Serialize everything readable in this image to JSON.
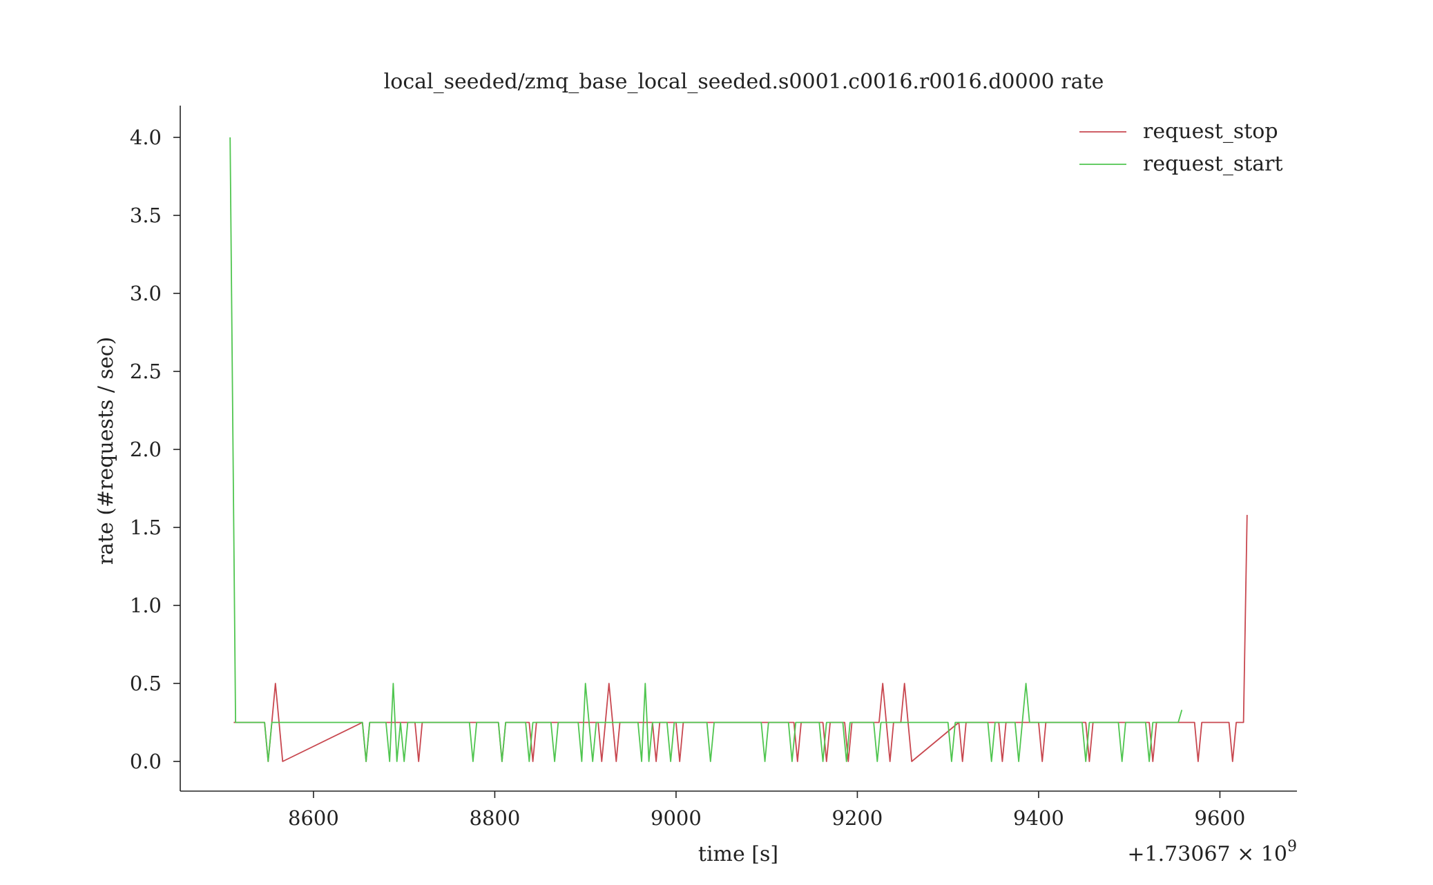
{
  "chart_data": {
    "type": "line",
    "title": "local_seeded/zmq_base_local_seeded.s0001.c0016.r0016.d0000 rate",
    "xlabel": "time [s]",
    "ylabel": "rate (#requests / sec)",
    "x_offset_label": "+1.73067 × 10",
    "x_offset_exponent": "9",
    "xlim": [
      8453,
      9685
    ],
    "ylim": [
      -0.2,
      4.2
    ],
    "x_ticks": [
      8600,
      8800,
      9000,
      9200,
      9400,
      9600
    ],
    "x_tick_labels": [
      "8600",
      "8800",
      "9000",
      "9200",
      "9400",
      "9600"
    ],
    "y_ticks": [
      0.0,
      0.5,
      1.0,
      1.5,
      2.0,
      2.5,
      3.0,
      3.5,
      4.0
    ],
    "y_tick_labels": [
      "0.0",
      "0.5",
      "1.0",
      "1.5",
      "2.0",
      "2.5",
      "3.0",
      "3.5",
      "4.0"
    ],
    "grid": false,
    "legend_position": "top-right",
    "series": [
      {
        "name": "request_stop",
        "color": "#c8474f",
        "x": [
          8512,
          8546,
          8550,
          8554,
          8558,
          8562,
          8566,
          8654,
          8658,
          8662,
          8704,
          8708,
          8712,
          8716,
          8720,
          8804,
          8808,
          8812,
          8838,
          8842,
          8846,
          8914,
          8918,
          8922,
          8926,
          8930,
          8934,
          8938,
          8974,
          8978,
          8982,
          9000,
          9004,
          9008,
          9130,
          9134,
          9138,
          9162,
          9166,
          9170,
          9186,
          9190,
          9194,
          9224,
          9228,
          9232,
          9236,
          9240,
          9248,
          9252,
          9256,
          9260,
          9312,
          9316,
          9320,
          9356,
          9360,
          9364,
          9400,
          9404,
          9408,
          9452,
          9456,
          9460,
          9522,
          9526,
          9530,
          9568,
          9572,
          9576,
          9580,
          9584,
          9610,
          9614,
          9618,
          9622,
          9626,
          9630
        ],
        "values": [
          0.25,
          0.25,
          0.0,
          0.25,
          0.5,
          0.25,
          0.0,
          0.25,
          0.0,
          0.25,
          0.25,
          0.25,
          0.25,
          0.0,
          0.25,
          0.25,
          0.0,
          0.25,
          0.25,
          0.0,
          0.25,
          0.25,
          0.0,
          0.25,
          0.5,
          0.25,
          0.0,
          0.25,
          0.25,
          0.0,
          0.25,
          0.25,
          0.0,
          0.25,
          0.25,
          0.0,
          0.25,
          0.25,
          0.0,
          0.25,
          0.25,
          0.0,
          0.25,
          0.25,
          0.5,
          0.25,
          0.0,
          0.25,
          0.25,
          0.5,
          0.25,
          0.0,
          0.25,
          0.0,
          0.25,
          0.25,
          0.0,
          0.25,
          0.25,
          0.0,
          0.25,
          0.25,
          0.0,
          0.25,
          0.25,
          0.0,
          0.25,
          0.25,
          0.25,
          0.0,
          0.25,
          0.25,
          0.25,
          0.0,
          0.25,
          0.25,
          0.25,
          1.58
        ]
      },
      {
        "name": "request_start",
        "color": "#4fc54f",
        "x": [
          8508,
          8514,
          8546,
          8550,
          8554,
          8654,
          8658,
          8662,
          8680,
          8684,
          8688,
          8692,
          8696,
          8700,
          8704,
          8708,
          8772,
          8776,
          8780,
          8804,
          8808,
          8812,
          8834,
          8838,
          8842,
          8862,
          8866,
          8870,
          8892,
          8896,
          8900,
          8904,
          8908,
          8912,
          8916,
          8958,
          8962,
          8966,
          8970,
          8974,
          8990,
          8994,
          8998,
          9034,
          9038,
          9042,
          9094,
          9098,
          9102,
          9124,
          9128,
          9132,
          9158,
          9162,
          9166,
          9184,
          9188,
          9192,
          9218,
          9222,
          9226,
          9300,
          9304,
          9308,
          9344,
          9348,
          9352,
          9374,
          9378,
          9382,
          9386,
          9390,
          9394,
          9448,
          9452,
          9456,
          9488,
          9492,
          9496,
          9518,
          9522,
          9526,
          9554,
          9558
        ],
        "values": [
          4.0,
          0.25,
          0.25,
          0.0,
          0.25,
          0.25,
          0.0,
          0.25,
          0.25,
          0.0,
          0.5,
          0.0,
          0.25,
          0.0,
          0.25,
          0.25,
          0.25,
          0.0,
          0.25,
          0.25,
          0.0,
          0.25,
          0.25,
          0.0,
          0.25,
          0.25,
          0.0,
          0.25,
          0.25,
          0.0,
          0.5,
          0.25,
          0.0,
          0.25,
          0.25,
          0.25,
          0.0,
          0.5,
          0.0,
          0.25,
          0.25,
          0.0,
          0.25,
          0.25,
          0.0,
          0.25,
          0.25,
          0.0,
          0.25,
          0.25,
          0.0,
          0.25,
          0.25,
          0.0,
          0.25,
          0.25,
          0.0,
          0.25,
          0.25,
          0.0,
          0.25,
          0.25,
          0.0,
          0.25,
          0.25,
          0.0,
          0.25,
          0.25,
          0.0,
          0.25,
          0.5,
          0.25,
          0.25,
          0.25,
          0.0,
          0.25,
          0.25,
          0.0,
          0.25,
          0.25,
          0.0,
          0.25,
          0.25,
          0.33
        ]
      }
    ]
  }
}
